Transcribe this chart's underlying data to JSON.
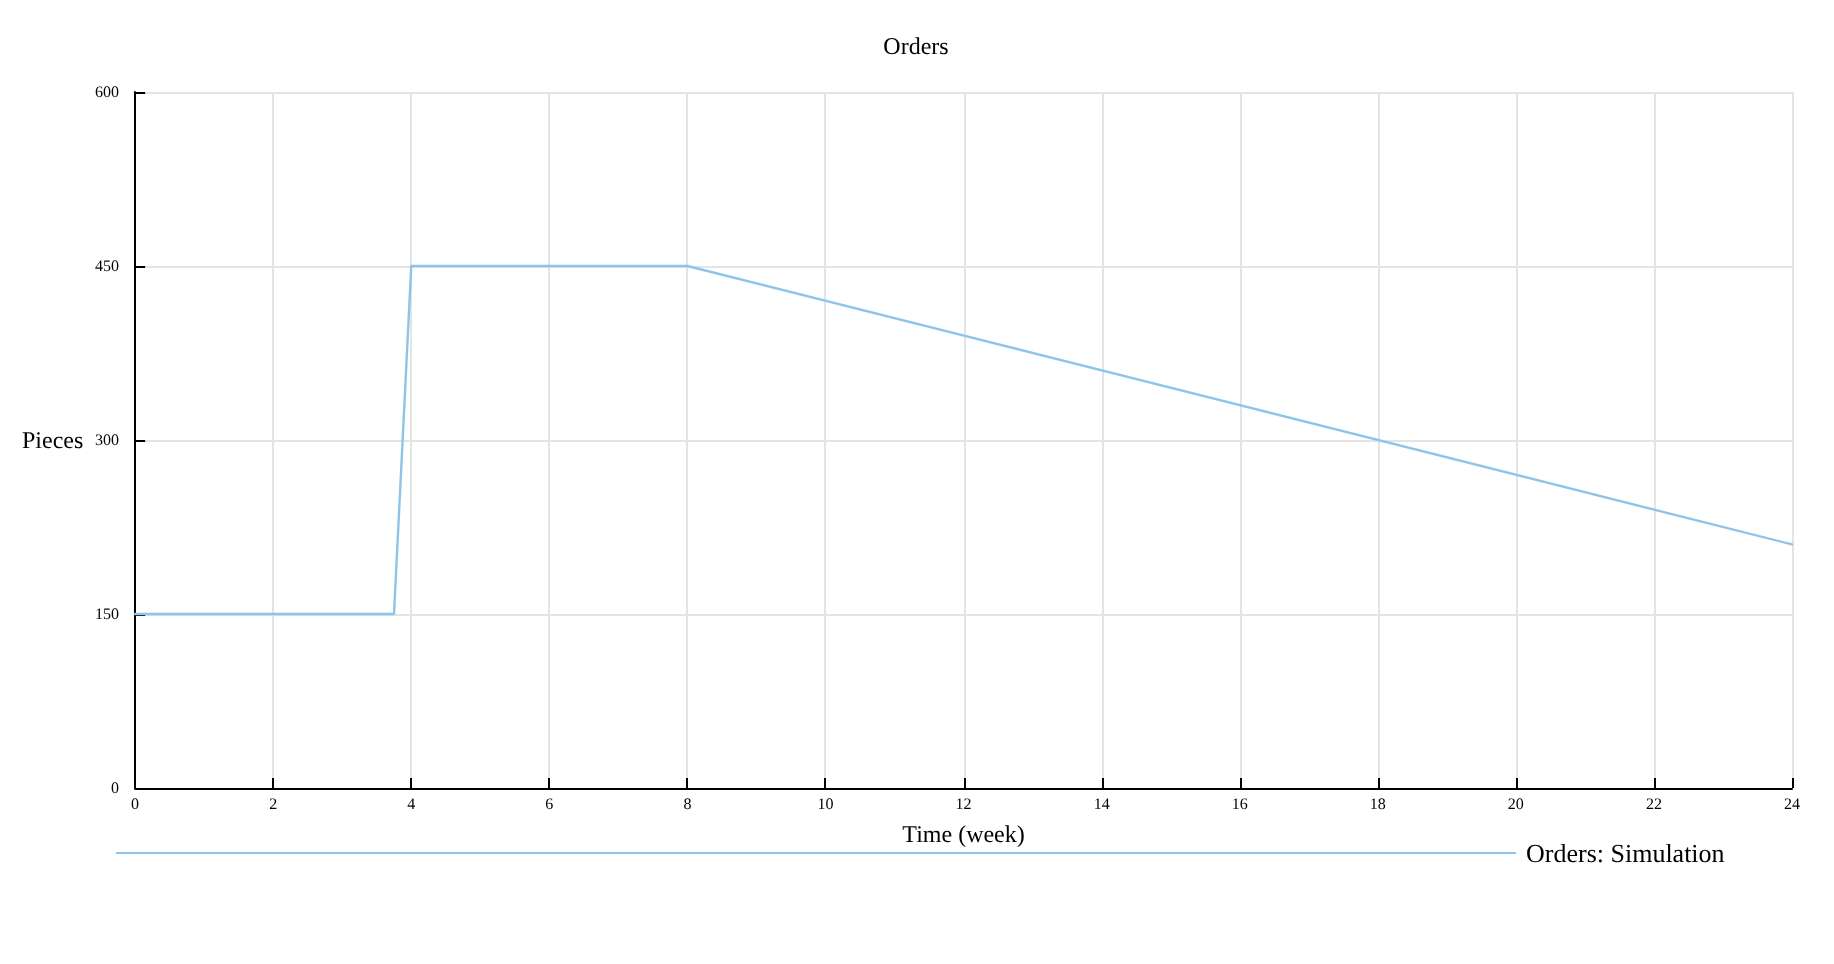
{
  "chart_data": {
    "type": "line",
    "title": "Orders",
    "xlabel": "Time (week)",
    "ylabel": "Pieces",
    "x": [
      0,
      3.75,
      4,
      8,
      24
    ],
    "series": [
      {
        "name": "Orders: Simulation",
        "color": "#8ec4ea",
        "values": [
          150,
          150,
          450,
          450,
          210
        ]
      }
    ],
    "xlim": [
      0,
      24
    ],
    "xticks": [
      0,
      2,
      4,
      6,
      8,
      10,
      12,
      14,
      16,
      18,
      20,
      22,
      24
    ],
    "ylim": [
      0,
      600
    ],
    "yticks": [
      0,
      150,
      300,
      450,
      600
    ],
    "grid": true,
    "legend": "bottom",
    "marker": "none",
    "line_style": "solid"
  }
}
